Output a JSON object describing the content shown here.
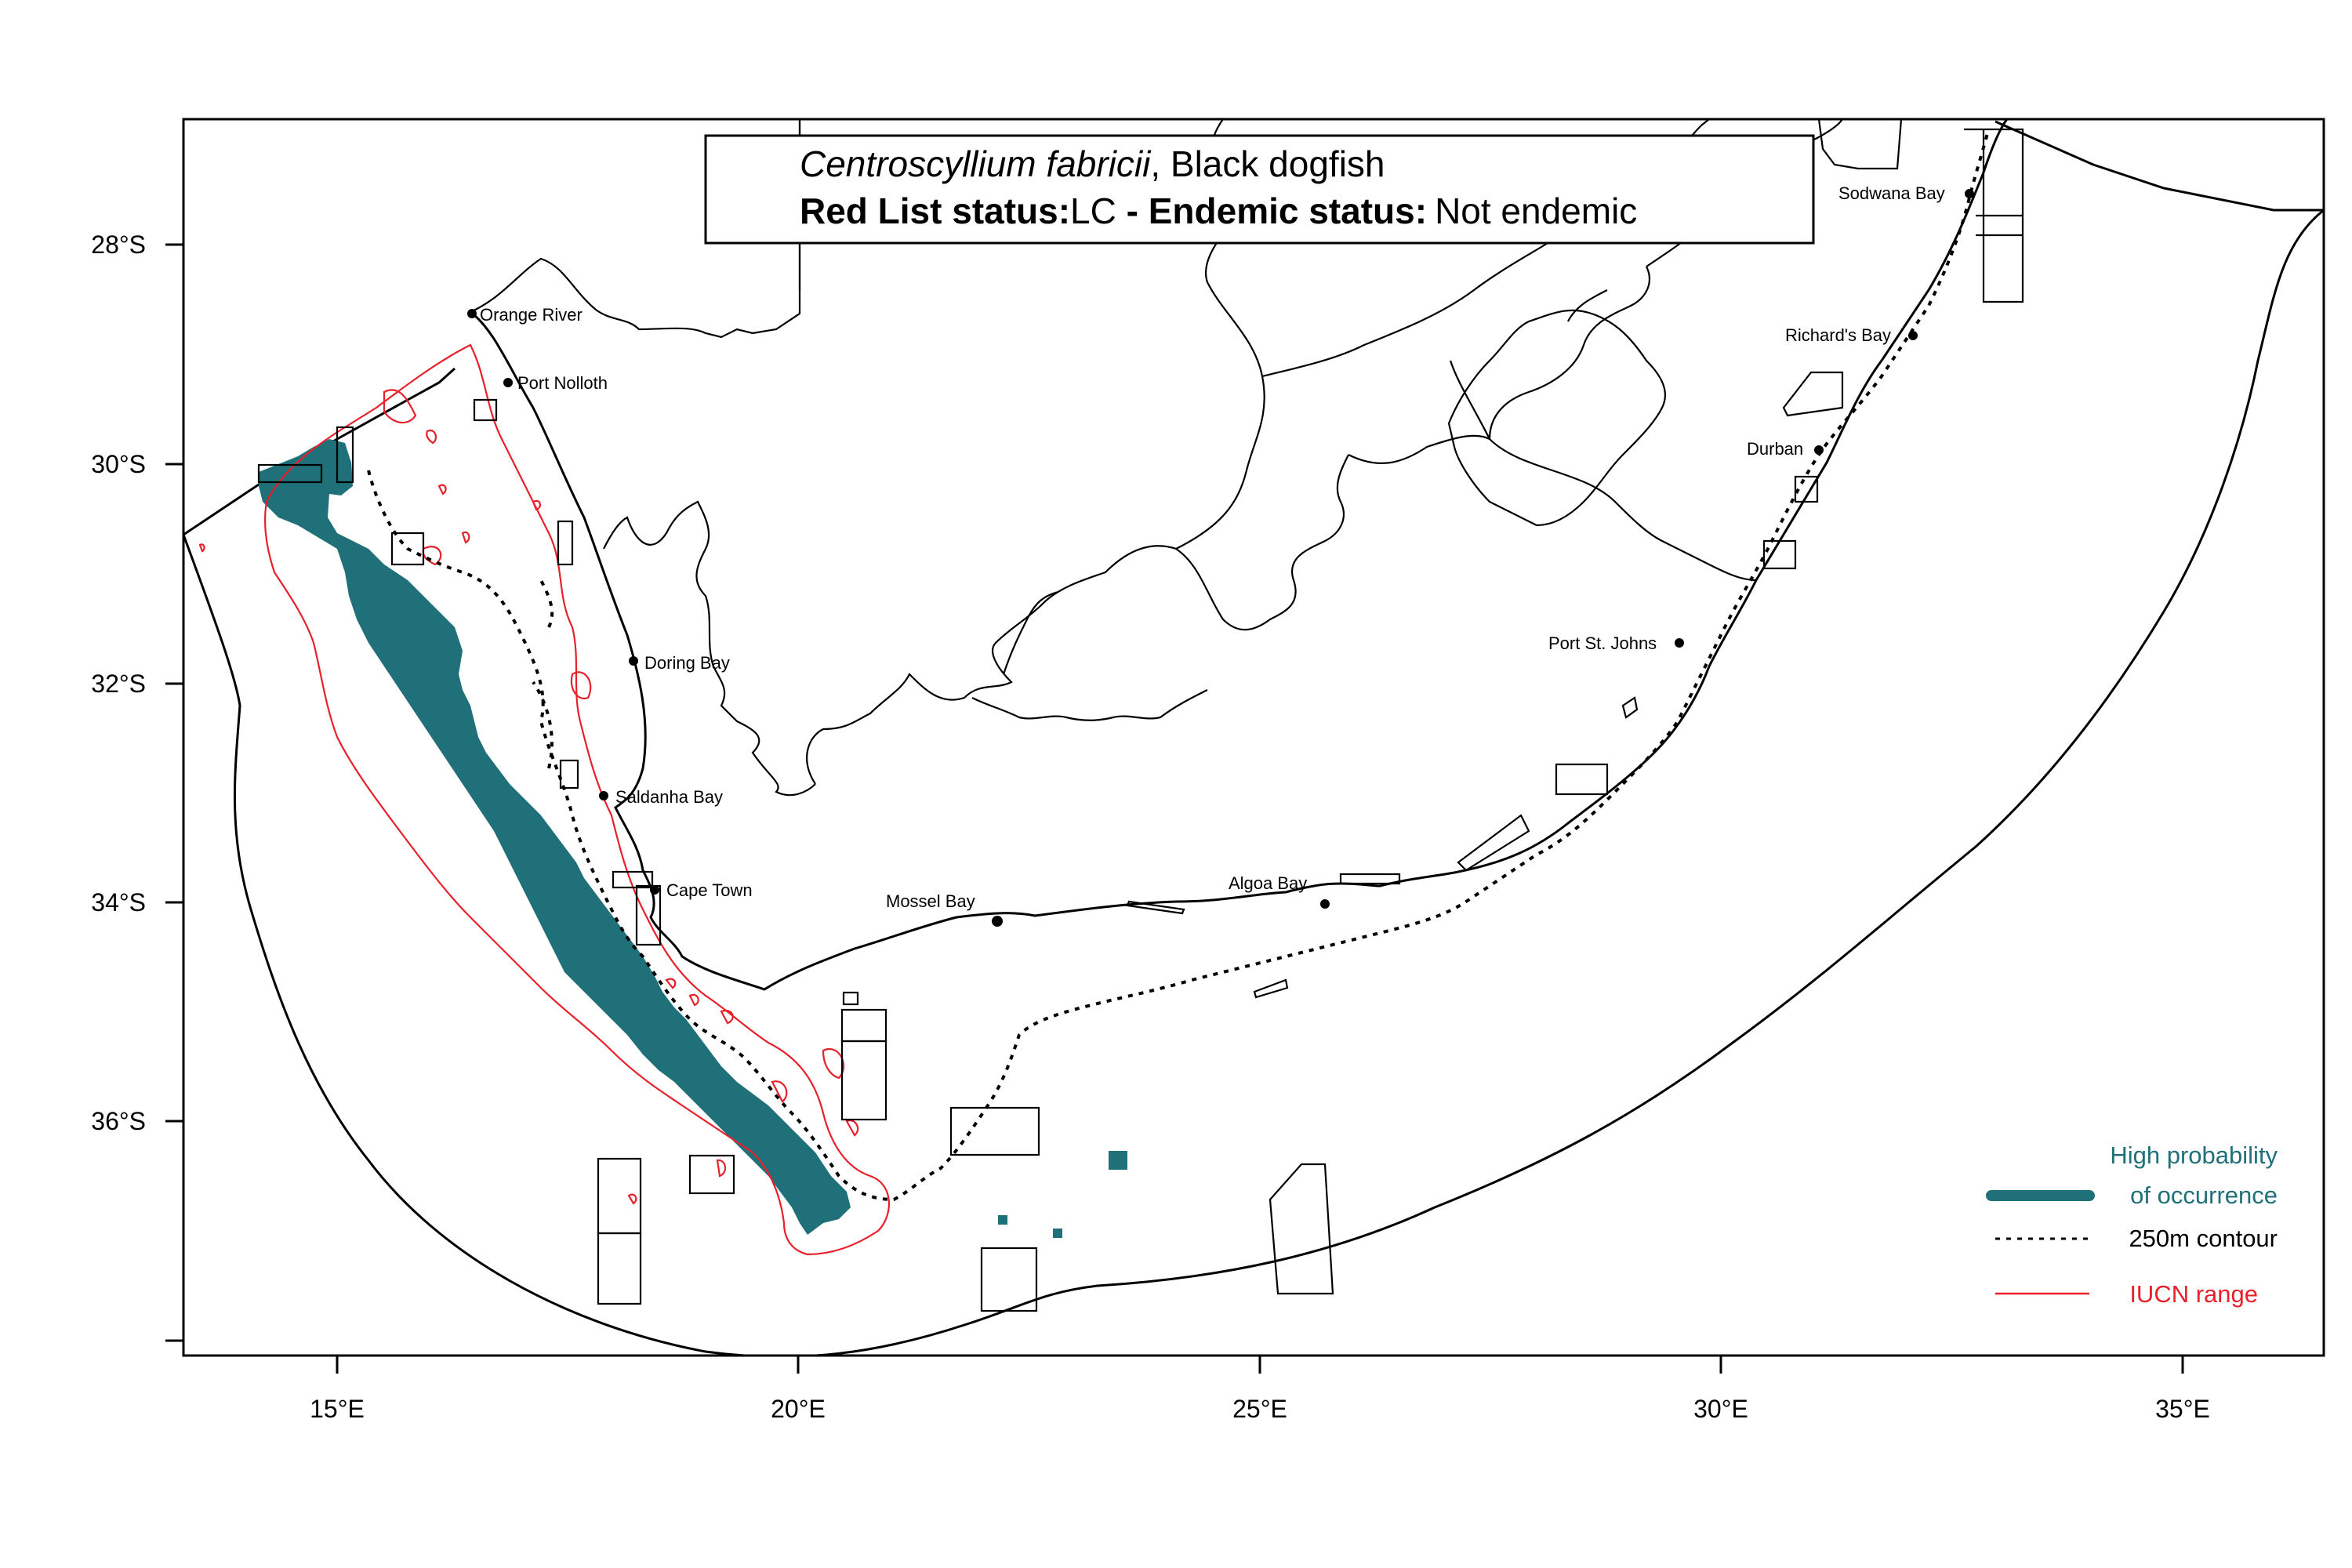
{
  "title": {
    "species_name": "Centroscyllium fabricii",
    "common_name": ", Black dogfish",
    "redlist_label": "Red List status:",
    "redlist_value": "LC",
    "endemic_label": " - Endemic status:",
    "endemic_value": "Not endemic"
  },
  "axes": {
    "lon_ticks": [
      "15°E",
      "20°E",
      "25°E",
      "30°E",
      "35°E"
    ],
    "lat_ticks": [
      "28°S",
      "30°S",
      "32°S",
      "34°S",
      "36°S"
    ]
  },
  "places": [
    {
      "name": "Orange River"
    },
    {
      "name": "Port Nolloth"
    },
    {
      "name": "Doring Bay"
    },
    {
      "name": "Saldanha Bay"
    },
    {
      "name": "Cape Town"
    },
    {
      "name": "Mossel Bay"
    },
    {
      "name": "Algoa Bay"
    },
    {
      "name": "Port St. Johns"
    },
    {
      "name": "Durban"
    },
    {
      "name": "Richard's Bay"
    },
    {
      "name": "Sodwana Bay"
    }
  ],
  "legend": {
    "high_prob_line1": "High probability",
    "high_prob_line2": "of occurrence",
    "contour": "250m contour",
    "iucn": "IUCN range"
  },
  "colors": {
    "occurrence": "#1f7078",
    "iucn": "#e8202a",
    "border": "#000000"
  }
}
